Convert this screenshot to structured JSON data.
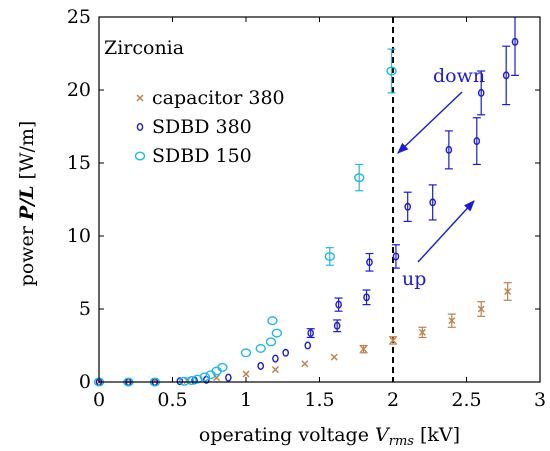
{
  "chart_data": {
    "type": "scatter",
    "xlabel": "operating voltage V",
    "xlabel_sub": "rms",
    "xlabel_unit": "[kV]",
    "ylabel_prefix": "power",
    "ylabel_var": "P/L",
    "ylabel_unit": "[W/m]",
    "xlim": [
      0,
      3
    ],
    "ylim": [
      0,
      25
    ],
    "xticks": [
      0,
      0.5,
      1,
      1.5,
      2,
      2.5,
      3
    ],
    "xtick_labels": [
      "0",
      "0.5",
      "1",
      "1.5",
      "2",
      "2.5",
      "3"
    ],
    "yticks": [
      0,
      5,
      10,
      15,
      20,
      25
    ],
    "ytick_labels": [
      "0",
      "5",
      "10",
      "15",
      "20",
      "25"
    ],
    "grid": false,
    "legend_position": "upper-left",
    "annotations": {
      "material": "Zirconia",
      "down": "down",
      "up": "up"
    },
    "threshold_x": 2,
    "series": [
      {
        "name": "capacitor 380",
        "marker": "x",
        "color": "#c0804a",
        "points": [
          {
            "x": 0.0,
            "y": 0.0
          },
          {
            "x": 0.2,
            "y": 0.02
          },
          {
            "x": 0.38,
            "y": 0.05
          },
          {
            "x": 0.6,
            "y": 0.1
          },
          {
            "x": 0.8,
            "y": 0.3
          },
          {
            "x": 1.0,
            "y": 0.55
          },
          {
            "x": 1.2,
            "y": 0.85
          },
          {
            "x": 1.4,
            "y": 1.25
          },
          {
            "x": 1.6,
            "y": 1.7
          },
          {
            "x": 1.8,
            "y": 2.25,
            "err": 0.25
          },
          {
            "x": 2.0,
            "y": 2.85,
            "err": 0.25
          },
          {
            "x": 2.2,
            "y": 3.4,
            "err": 0.35
          },
          {
            "x": 2.4,
            "y": 4.2,
            "err": 0.45
          },
          {
            "x": 2.6,
            "y": 5.0,
            "err": 0.5
          },
          {
            "x": 2.78,
            "y": 6.2,
            "err": 0.6
          }
        ]
      },
      {
        "name": "SDBD 380",
        "marker": "circle-small",
        "color": "#1a1adc",
        "points": [
          {
            "x": 0.0,
            "y": 0.0
          },
          {
            "x": 0.2,
            "y": 0.0
          },
          {
            "x": 0.38,
            "y": 0.0
          },
          {
            "x": 0.55,
            "y": 0.05
          },
          {
            "x": 0.65,
            "y": 0.1
          },
          {
            "x": 0.73,
            "y": 0.15
          },
          {
            "x": 0.88,
            "y": 0.3
          },
          {
            "x": 1.1,
            "y": 1.1
          },
          {
            "x": 1.2,
            "y": 1.6
          },
          {
            "x": 1.27,
            "y": 2.0
          },
          {
            "x": 1.42,
            "y": 2.5
          },
          {
            "x": 1.44,
            "y": 3.35,
            "err": 0.3
          },
          {
            "x": 1.62,
            "y": 3.85,
            "err": 0.4
          },
          {
            "x": 1.63,
            "y": 5.3,
            "err": 0.45
          },
          {
            "x": 1.82,
            "y": 5.8,
            "err": 0.5
          },
          {
            "x": 1.84,
            "y": 8.2,
            "err": 0.6
          },
          {
            "x": 2.02,
            "y": 8.6,
            "err": 0.8
          },
          {
            "x": 2.1,
            "y": 12.0,
            "err": 1.0
          },
          {
            "x": 2.27,
            "y": 12.3,
            "err": 1.2
          },
          {
            "x": 2.38,
            "y": 15.9,
            "err": 1.3
          },
          {
            "x": 2.57,
            "y": 16.5,
            "err": 1.6
          },
          {
            "x": 2.6,
            "y": 19.8,
            "err": 1.5
          },
          {
            "x": 2.77,
            "y": 21.0,
            "err": 2.0
          },
          {
            "x": 2.83,
            "y": 23.3,
            "err": 2.3
          }
        ]
      },
      {
        "name": "SDBD 150",
        "marker": "circle-large",
        "color": "#22b8e0",
        "points": [
          {
            "x": 0.0,
            "y": 0.0
          },
          {
            "x": 0.2,
            "y": 0.0
          },
          {
            "x": 0.38,
            "y": 0.0
          },
          {
            "x": 0.58,
            "y": 0.05
          },
          {
            "x": 0.63,
            "y": 0.1
          },
          {
            "x": 0.67,
            "y": 0.2
          },
          {
            "x": 0.72,
            "y": 0.35
          },
          {
            "x": 0.76,
            "y": 0.5
          },
          {
            "x": 0.8,
            "y": 0.75
          },
          {
            "x": 0.84,
            "y": 1.0
          },
          {
            "x": 1.0,
            "y": 2.0
          },
          {
            "x": 1.1,
            "y": 2.3
          },
          {
            "x": 1.17,
            "y": 2.75
          },
          {
            "x": 1.18,
            "y": 4.2
          },
          {
            "x": 1.21,
            "y": 3.35
          },
          {
            "x": 1.57,
            "y": 8.6,
            "err": 0.6
          },
          {
            "x": 1.77,
            "y": 14.0,
            "err": 0.9
          },
          {
            "x": 1.99,
            "y": 21.3,
            "err": 1.5
          }
        ]
      }
    ]
  }
}
